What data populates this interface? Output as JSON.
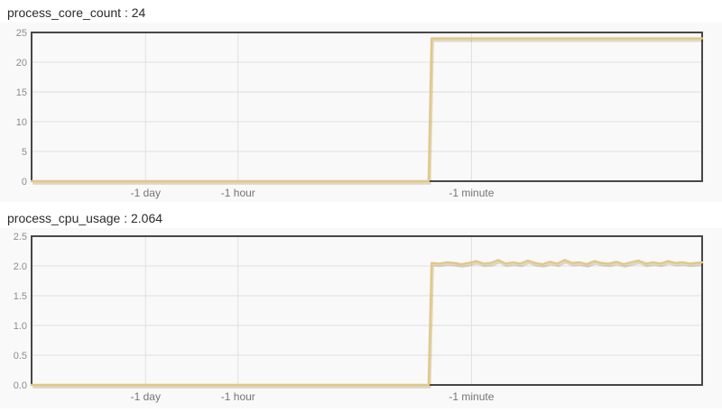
{
  "colors": {
    "line": "#e9c873",
    "line_shadow": "rgba(60,60,60,0.18)",
    "plot_border": "#474747",
    "grid": "#e0e0e0",
    "canvas_bg": "#f9f9f9",
    "title_text": "#2b2b2b",
    "y_tick_text": "#8c8c8c",
    "x_tick_text": "#757575"
  },
  "chart_data": [
    {
      "type": "line",
      "title": "process_core_count : 24",
      "metric": "process_core_count",
      "current_value": "24",
      "ylim": [
        0,
        25
      ],
      "grid": true,
      "legend": "none",
      "y_ticks": [
        {
          "value": 0,
          "label": "0"
        },
        {
          "value": 5,
          "label": "5"
        },
        {
          "value": 10,
          "label": "10"
        },
        {
          "value": 15,
          "label": "15"
        },
        {
          "value": 20,
          "label": "20"
        },
        {
          "value": 25,
          "label": "25"
        }
      ],
      "x_ticks": [
        {
          "label": "-1 day",
          "pos": 0.17
        },
        {
          "label": "-1 hour",
          "pos": 0.308
        },
        {
          "label": "-1 minute",
          "pos": 0.656
        }
      ],
      "series": [
        {
          "name": "process_core_count",
          "points": [
            [
              0,
              0
            ],
            [
              0.592,
              0
            ],
            [
              0.5965,
              24
            ],
            [
              1,
              24
            ]
          ]
        }
      ]
    },
    {
      "type": "line",
      "title": "process_cpu_usage : 2.064",
      "metric": "process_cpu_usage",
      "current_value": "2.064",
      "ylim": [
        0,
        2.5
      ],
      "grid": true,
      "legend": "none",
      "y_ticks": [
        {
          "value": 0,
          "label": "0.0"
        },
        {
          "value": 0.5,
          "label": "0.5"
        },
        {
          "value": 1,
          "label": "1.0"
        },
        {
          "value": 1.5,
          "label": "1.5"
        },
        {
          "value": 2,
          "label": "2.0"
        },
        {
          "value": 2.5,
          "label": "2.5"
        }
      ],
      "x_ticks": [
        {
          "label": "-1 day",
          "pos": 0.17
        },
        {
          "label": "-1 hour",
          "pos": 0.308
        },
        {
          "label": "-1 minute",
          "pos": 0.656
        }
      ],
      "series": [
        {
          "name": "process_cpu_usage",
          "points": [
            [
              0,
              0
            ],
            [
              0.592,
              0
            ],
            [
              0.5965,
              2.05
            ],
            [
              0.608,
              2.04
            ],
            [
              0.619,
              2.06
            ],
            [
              0.63,
              2.05
            ],
            [
              0.641,
              2.03
            ],
            [
              0.652,
              2.05
            ],
            [
              0.663,
              2.08
            ],
            [
              0.674,
              2.04
            ],
            [
              0.685,
              2.05
            ],
            [
              0.696,
              2.1
            ],
            [
              0.707,
              2.04
            ],
            [
              0.718,
              2.06
            ],
            [
              0.729,
              2.04
            ],
            [
              0.74,
              2.09
            ],
            [
              0.751,
              2.05
            ],
            [
              0.762,
              2.03
            ],
            [
              0.773,
              2.07
            ],
            [
              0.784,
              2.04
            ],
            [
              0.795,
              2.1
            ],
            [
              0.806,
              2.05
            ],
            [
              0.817,
              2.06
            ],
            [
              0.828,
              2.03
            ],
            [
              0.839,
              2.08
            ],
            [
              0.85,
              2.05
            ],
            [
              0.861,
              2.04
            ],
            [
              0.872,
              2.07
            ],
            [
              0.883,
              2.03
            ],
            [
              0.894,
              2.06
            ],
            [
              0.905,
              2.09
            ],
            [
              0.916,
              2.04
            ],
            [
              0.927,
              2.06
            ],
            [
              0.938,
              2.04
            ],
            [
              0.949,
              2.08
            ],
            [
              0.96,
              2.05
            ],
            [
              0.971,
              2.06
            ],
            [
              0.982,
              2.04
            ],
            [
              1,
              2.06
            ]
          ]
        }
      ]
    }
  ]
}
